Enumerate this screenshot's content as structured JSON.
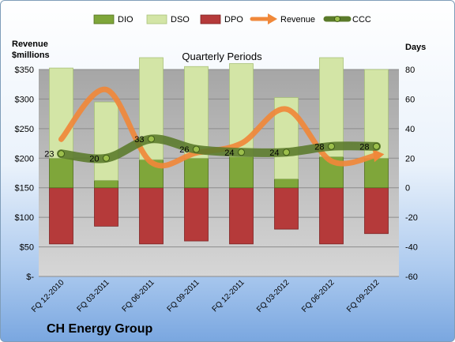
{
  "chart_data": {
    "type": "bar",
    "title": "Quarterly Periods",
    "company": "CH Energy Group",
    "left_axis_label_line1": "Revenue",
    "left_axis_label_line2": "$millions",
    "right_axis_label": "Days",
    "left_ylim": [
      0,
      350
    ],
    "right_ylim": [
      -60,
      80
    ],
    "left_ticks": [
      "$-",
      "$50",
      "$100",
      "$150",
      "$200",
      "$250",
      "$300",
      "$350"
    ],
    "right_ticks": [
      "-60",
      "-40",
      "-20",
      "0",
      "20",
      "40",
      "60",
      "80"
    ],
    "categories": [
      "FQ 12-2010",
      "FQ 03-2011",
      "FQ 06-2011",
      "FQ 09-2011",
      "FQ 12-2011",
      "FQ 03-2012",
      "FQ 06-2012",
      "FQ 09-2012"
    ],
    "grid": true,
    "legend_position": "top",
    "series": [
      {
        "name": "DIO",
        "type": "stacked-bar",
        "axis": "right",
        "color": "#7fa63a",
        "values": [
          20,
          5,
          19,
          20,
          21,
          6,
          21,
          20
        ]
      },
      {
        "name": "DSO",
        "type": "stacked-bar",
        "axis": "right",
        "color": "#d3e5a6",
        "values": [
          61,
          53,
          69,
          62,
          63,
          55,
          67,
          60
        ]
      },
      {
        "name": "DPO",
        "type": "stacked-bar",
        "axis": "right",
        "color": "#b53a3a",
        "values": [
          -38,
          -26,
          -38,
          -36,
          -38,
          -28,
          -38,
          -31
        ]
      },
      {
        "name": "Revenue",
        "type": "line",
        "axis": "left",
        "color": "#f0883a",
        "values": [
          232,
          316,
          193,
          209,
          225,
          283,
          195,
          205
        ]
      },
      {
        "name": "CCC",
        "type": "line",
        "axis": "right",
        "color": "#5a7a2a",
        "values": [
          23,
          20,
          33,
          26,
          24,
          24,
          28,
          28
        ]
      }
    ],
    "data_labels": [
      "23",
      "20",
      "33",
      "26",
      "24",
      "24",
      "28",
      "28"
    ]
  }
}
